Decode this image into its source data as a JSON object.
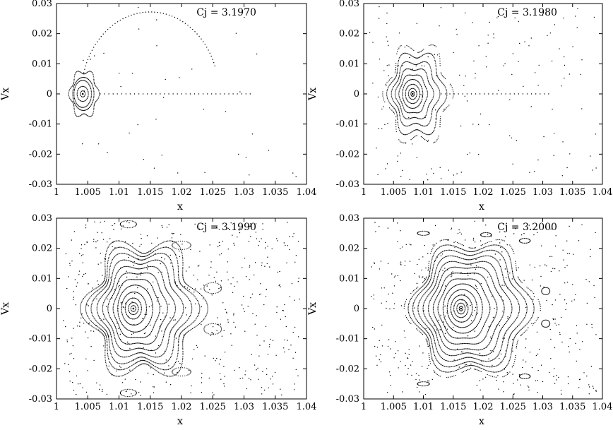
{
  "chart_data": [
    {
      "type": "scatter",
      "label": "Cj = 3.1970",
      "xlabel": "x",
      "ylabel": "Vx",
      "xlim": [
        1,
        1.04
      ],
      "ylim": [
        -0.03,
        0.03
      ],
      "xticks": [
        "1",
        "1.005",
        "1.01",
        "1.015",
        "1.02",
        "1.025",
        "1.03",
        "1.035",
        "1.04"
      ],
      "yticks": [
        "0.03",
        "0.02",
        "0.01",
        "0",
        "-0.01",
        "-0.02",
        "-0.03"
      ],
      "grid": false,
      "center": [
        1.0042,
        0.0
      ],
      "orbits": [
        {
          "kind": "ring",
          "cx": 1.0042,
          "rx": 0.0004,
          "ry": 0.001
        },
        {
          "kind": "ring",
          "cx": 1.0042,
          "rx": 0.0009,
          "ry": 0.0025
        },
        {
          "kind": "ring",
          "cx": 1.0042,
          "rx": 0.0014,
          "ry": 0.0045
        },
        {
          "kind": "ring",
          "cx": 1.0043,
          "rx": 0.0017,
          "ry": 0.0055
        },
        {
          "kind": "ring",
          "cx": 1.0044,
          "rx": 0.0022,
          "ry": 0.0075,
          "wobble": 0.12
        },
        {
          "kind": "axis_dots",
          "x_from": 1.007,
          "x_to": 1.031,
          "count": 36
        },
        {
          "kind": "arc",
          "cx": 1.015,
          "cy": 0.0,
          "rx": 0.011,
          "ry": 0.0272,
          "from_deg": 20,
          "to_deg": 165,
          "count": 60
        },
        {
          "kind": "scatter",
          "count": 40,
          "x_from": 1.003,
          "x_to": 1.039,
          "y_from": -0.029,
          "y_to": 0.029,
          "seed": 11
        }
      ]
    },
    {
      "type": "scatter",
      "label": "Cj = 3.1980",
      "xlabel": "x",
      "ylabel": "Vx",
      "xlim": [
        1,
        1.04
      ],
      "ylim": [
        -0.03,
        0.03
      ],
      "xticks": [
        "1",
        "1.005",
        "1.01",
        "1.015",
        "1.02",
        "1.025",
        "1.03",
        "1.035",
        "1.04"
      ],
      "yticks": [
        "0.03",
        "0.02",
        "0.01",
        "0",
        "-0.01",
        "-0.02",
        "-0.03"
      ],
      "grid": false,
      "center": [
        1.0082,
        0.0
      ],
      "orbits": [
        {
          "kind": "ring",
          "cx": 1.0082,
          "rx": 0.0003,
          "ry": 0.0008
        },
        {
          "kind": "ring",
          "cx": 1.0082,
          "rx": 0.0007,
          "ry": 0.0018
        },
        {
          "kind": "ring",
          "cx": 1.0082,
          "rx": 0.0012,
          "ry": 0.0032
        },
        {
          "kind": "ring",
          "cx": 1.0082,
          "rx": 0.0017,
          "ry": 0.0048
        },
        {
          "kind": "ring",
          "cx": 1.0083,
          "rx": 0.0023,
          "ry": 0.0065,
          "wobble": 0.05
        },
        {
          "kind": "ring",
          "cx": 1.0085,
          "rx": 0.003,
          "ry": 0.0085,
          "wobble": 0.08
        },
        {
          "kind": "ring",
          "cx": 1.0087,
          "rx": 0.0037,
          "ry": 0.0108,
          "wobble": 0.1
        },
        {
          "kind": "ring",
          "cx": 1.0089,
          "rx": 0.0045,
          "ry": 0.0135,
          "wobble": 0.12
        },
        {
          "kind": "ring",
          "cx": 1.0091,
          "rx": 0.0052,
          "ry": 0.016,
          "wobble": 0.14,
          "dashed": true
        },
        {
          "kind": "axis_dots",
          "x_from": 1.013,
          "x_to": 1.031,
          "count": 26
        },
        {
          "kind": "scatter",
          "count": 160,
          "x_from": 1.001,
          "x_to": 1.039,
          "y_from": -0.029,
          "y_to": 0.029,
          "seed": 23
        }
      ]
    },
    {
      "type": "scatter",
      "label": "Cj = 3.1990",
      "xlabel": "x",
      "ylabel": "Vx",
      "xlim": [
        1,
        1.04
      ],
      "ylim": [
        -0.03,
        0.03
      ],
      "xticks": [
        "1",
        "1.005",
        "1.01",
        "1.015",
        "1.02",
        "1.025",
        "1.03",
        "1.035",
        "1.04"
      ],
      "yticks": [
        "0.03",
        "0.02",
        "0.01",
        "0",
        "-0.01",
        "-0.02",
        "-0.03"
      ],
      "grid": false,
      "center": [
        1.0123,
        0.0
      ],
      "orbits": [
        {
          "kind": "ring",
          "cx": 1.0123,
          "rx": 0.0004,
          "ry": 0.001
        },
        {
          "kind": "ring",
          "cx": 1.0123,
          "rx": 0.0008,
          "ry": 0.002
        },
        {
          "kind": "ring",
          "cx": 1.0123,
          "rx": 0.0013,
          "ry": 0.0035
        },
        {
          "kind": "ring",
          "cx": 1.0124,
          "rx": 0.002,
          "ry": 0.0055
        },
        {
          "kind": "ring",
          "cx": 1.0126,
          "rx": 0.0028,
          "ry": 0.0078
        },
        {
          "kind": "ring",
          "cx": 1.0128,
          "rx": 0.0036,
          "ry": 0.01,
          "wobble": 0.04
        },
        {
          "kind": "ring",
          "cx": 1.013,
          "rx": 0.0045,
          "ry": 0.0122,
          "wobble": 0.06
        },
        {
          "kind": "ring",
          "cx": 1.0132,
          "rx": 0.0054,
          "ry": 0.0143,
          "wobble": 0.08
        },
        {
          "kind": "ring",
          "cx": 1.0134,
          "rx": 0.0063,
          "ry": 0.0163,
          "wobble": 0.1
        },
        {
          "kind": "ring",
          "cx": 1.0136,
          "rx": 0.0072,
          "ry": 0.0183,
          "wobble": 0.12
        },
        {
          "kind": "ring",
          "cx": 1.0138,
          "rx": 0.008,
          "ry": 0.02,
          "wobble": 0.14
        },
        {
          "kind": "ring",
          "cx": 1.014,
          "rx": 0.0088,
          "ry": 0.0218,
          "wobble": 0.16
        },
        {
          "kind": "island",
          "cx": 1.025,
          "cy": 0.0068,
          "rx": 0.0014,
          "ry": 0.0018
        },
        {
          "kind": "island",
          "cx": 1.025,
          "cy": -0.0068,
          "rx": 0.0014,
          "ry": 0.0018
        },
        {
          "kind": "island",
          "cx": 1.02,
          "cy": 0.021,
          "rx": 0.0015,
          "ry": 0.0014
        },
        {
          "kind": "island",
          "cx": 1.02,
          "cy": -0.021,
          "rx": 0.0015,
          "ry": 0.0014
        },
        {
          "kind": "island",
          "cx": 1.0115,
          "cy": 0.028,
          "rx": 0.0013,
          "ry": 0.0012
        },
        {
          "kind": "island",
          "cx": 1.0115,
          "cy": -0.028,
          "rx": 0.0013,
          "ry": 0.0012
        },
        {
          "kind": "scatter",
          "count": 520,
          "x_from": 1.001,
          "x_to": 1.039,
          "y_from": -0.029,
          "y_to": 0.029,
          "seed": 37
        }
      ]
    },
    {
      "type": "scatter",
      "label": "Cj = 3.2000",
      "xlabel": "x",
      "ylabel": "Vx",
      "xlim": [
        1,
        1.04
      ],
      "ylim": [
        -0.03,
        0.03
      ],
      "xticks": [
        "1",
        "1.005",
        "1.01",
        "1.015",
        "1.02",
        "1.025",
        "1.03",
        "1.035",
        "1.04"
      ],
      "yticks": [
        "0.03",
        "0.02",
        "0.01",
        "0",
        "-0.01",
        "-0.02",
        "-0.03"
      ],
      "grid": false,
      "center": [
        1.0163,
        0.0
      ],
      "orbits": [
        {
          "kind": "ring",
          "cx": 1.0163,
          "rx": 0.0003,
          "ry": 0.0008
        },
        {
          "kind": "ring",
          "cx": 1.0163,
          "rx": 0.0007,
          "ry": 0.0018
        },
        {
          "kind": "ring",
          "cx": 1.0163,
          "rx": 0.0012,
          "ry": 0.003
        },
        {
          "kind": "ring",
          "cx": 1.0164,
          "rx": 0.0018,
          "ry": 0.0045
        },
        {
          "kind": "ring",
          "cx": 1.0165,
          "rx": 0.0025,
          "ry": 0.0063
        },
        {
          "kind": "ring",
          "cx": 1.0166,
          "rx": 0.0033,
          "ry": 0.0082
        },
        {
          "kind": "ring",
          "cx": 1.0168,
          "rx": 0.0042,
          "ry": 0.0102,
          "wobble": 0.04
        },
        {
          "kind": "ring",
          "cx": 1.017,
          "rx": 0.0051,
          "ry": 0.0122,
          "wobble": 0.05
        },
        {
          "kind": "ring",
          "cx": 1.0172,
          "rx": 0.006,
          "ry": 0.0142,
          "wobble": 0.06
        },
        {
          "kind": "ring",
          "cx": 1.0174,
          "rx": 0.0069,
          "ry": 0.016,
          "wobble": 0.08
        },
        {
          "kind": "ring",
          "cx": 1.0176,
          "rx": 0.0078,
          "ry": 0.0178,
          "wobble": 0.09
        },
        {
          "kind": "ring",
          "cx": 1.0178,
          "rx": 0.0087,
          "ry": 0.0196,
          "wobble": 0.1
        },
        {
          "kind": "ring",
          "cx": 1.018,
          "rx": 0.0095,
          "ry": 0.0212,
          "wobble": 0.11
        },
        {
          "kind": "ring",
          "cx": 1.0182,
          "rx": 0.0102,
          "ry": 0.0228,
          "wobble": 0.12,
          "dashed": true
        },
        {
          "kind": "island",
          "cx": 1.0305,
          "cy": 0.0058,
          "rx": 0.0007,
          "ry": 0.0012
        },
        {
          "kind": "island",
          "cx": 1.0305,
          "cy": -0.005,
          "rx": 0.0007,
          "ry": 0.0012
        },
        {
          "kind": "island",
          "cx": 1.027,
          "cy": 0.0225,
          "rx": 0.0009,
          "ry": 0.0008
        },
        {
          "kind": "island",
          "cx": 1.0205,
          "cy": 0.0245,
          "rx": 0.0009,
          "ry": 0.0007
        },
        {
          "kind": "island",
          "cx": 1.01,
          "cy": 0.025,
          "rx": 0.001,
          "ry": 0.0007
        },
        {
          "kind": "island",
          "cx": 1.027,
          "cy": -0.0225,
          "rx": 0.0009,
          "ry": 0.0008
        },
        {
          "kind": "island",
          "cx": 1.01,
          "cy": -0.025,
          "rx": 0.001,
          "ry": 0.0007
        },
        {
          "kind": "scatter",
          "count": 420,
          "x_from": 1.001,
          "x_to": 1.039,
          "y_from": -0.029,
          "y_to": 0.029,
          "seed": 53
        }
      ]
    }
  ]
}
